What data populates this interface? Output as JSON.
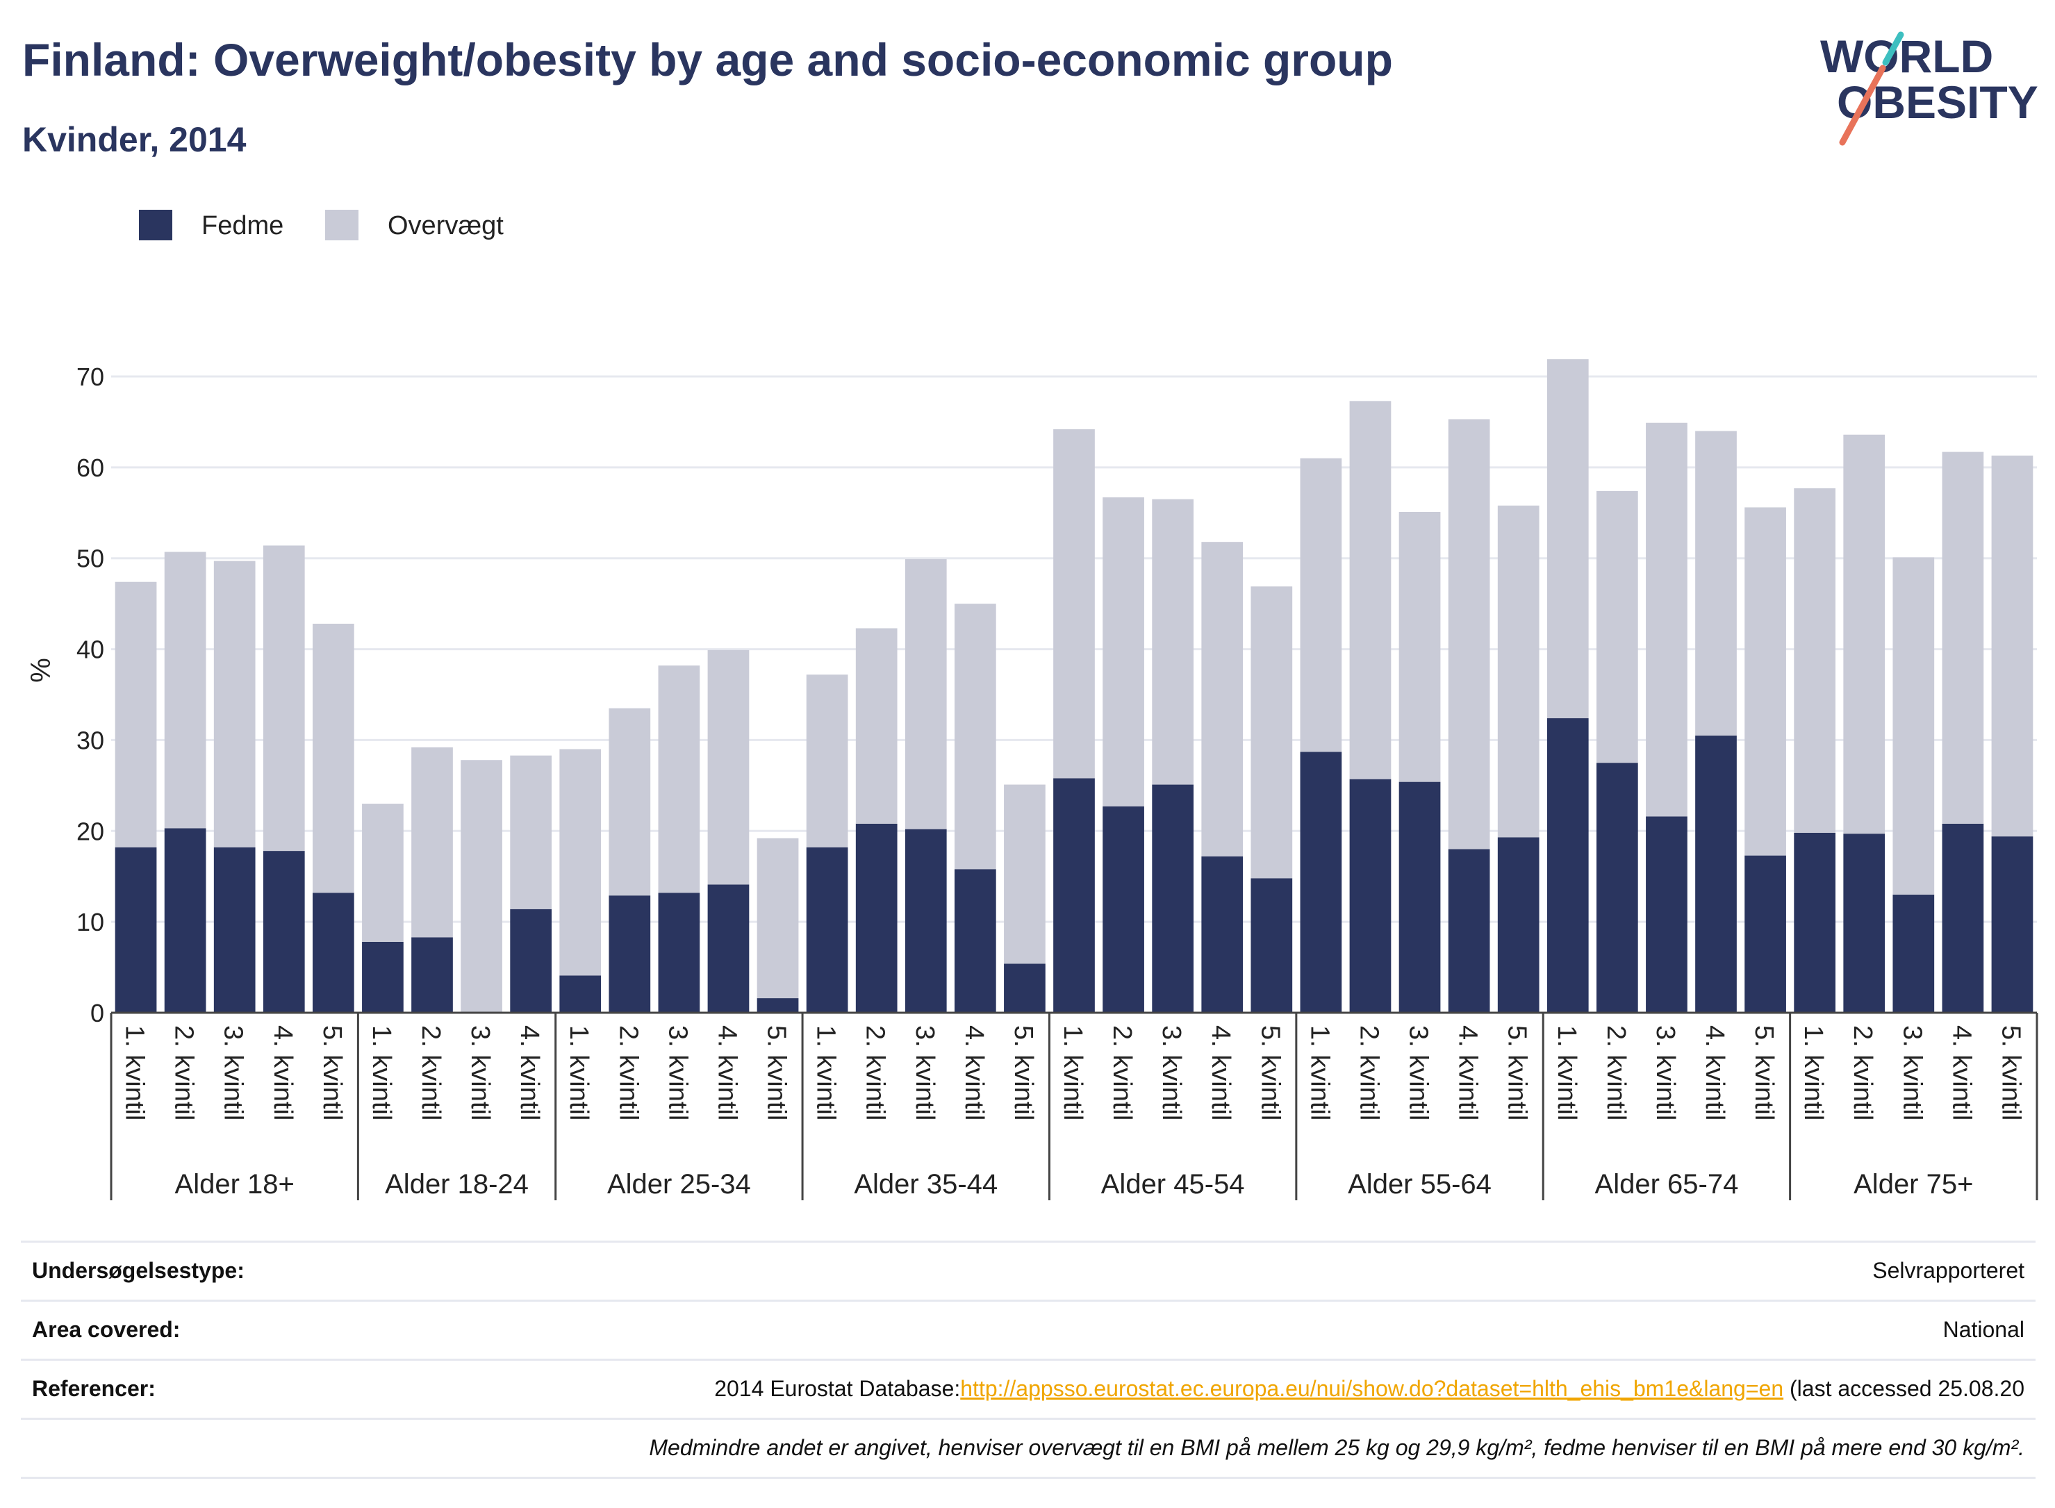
{
  "title": "Finland: Overweight/obesity by age and socio-economic group",
  "subtitle": "Kvinder, 2014",
  "logo": {
    "line1": "WORLD",
    "line2": "OBESITY",
    "accent_colors": [
      "#e8735a",
      "#3dbfc0"
    ]
  },
  "colors": {
    "fedme": "#2a355f",
    "overvaegt": "#c9cbd7",
    "grid": "#e6e8ef",
    "text": "#2a355f"
  },
  "chart_data": {
    "type": "bar",
    "stacked": true,
    "ylabel": "%",
    "ylim": [
      0,
      72
    ],
    "yticks": [
      0,
      10,
      20,
      30,
      40,
      50,
      60,
      70
    ],
    "legend_position": "top-left",
    "grid": true,
    "groups": [
      {
        "label": "Alder 18+",
        "categories": [
          "1. kvintil",
          "2. kvintil",
          "3. kvintil",
          "4. kvintil",
          "5. kvintil"
        ]
      },
      {
        "label": "Alder 18-24",
        "categories": [
          "1. kvintil",
          "2. kvintil",
          "3. kvintil",
          "4. kvintil"
        ]
      },
      {
        "label": "Alder 25-34",
        "categories": [
          "1. kvintil",
          "2. kvintil",
          "3. kvintil",
          "4. kvintil",
          "5. kvintil"
        ]
      },
      {
        "label": "Alder 35-44",
        "categories": [
          "1. kvintil",
          "2. kvintil",
          "3. kvintil",
          "4. kvintil",
          "5. kvintil"
        ]
      },
      {
        "label": "Alder 45-54",
        "categories": [
          "1. kvintil",
          "2. kvintil",
          "3. kvintil",
          "4. kvintil",
          "5. kvintil"
        ]
      },
      {
        "label": "Alder 55-64",
        "categories": [
          "1. kvintil",
          "2. kvintil",
          "3. kvintil",
          "4. kvintil",
          "5. kvintil"
        ]
      },
      {
        "label": "Alder 65-74",
        "categories": [
          "1. kvintil",
          "2. kvintil",
          "3. kvintil",
          "4. kvintil",
          "5. kvintil"
        ]
      },
      {
        "label": "Alder 75+",
        "categories": [
          "1. kvintil",
          "2. kvintil",
          "3. kvintil",
          "4. kvintil",
          "5. kvintil"
        ]
      }
    ],
    "series": [
      {
        "name": "Fedme",
        "values": [
          18.2,
          20.3,
          18.2,
          17.8,
          13.2,
          7.8,
          8.3,
          0,
          11.4,
          4.1,
          12.9,
          13.2,
          14.1,
          1.6,
          18.2,
          20.8,
          20.2,
          15.8,
          5.4,
          25.8,
          22.7,
          25.1,
          17.2,
          14.8,
          28.7,
          25.7,
          25.4,
          18.0,
          19.3,
          32.4,
          27.5,
          21.6,
          30.5,
          17.3,
          19.8,
          19.7,
          13.0,
          20.8,
          19.4
        ]
      },
      {
        "name": "Overvægt",
        "values": [
          29.2,
          30.4,
          31.5,
          33.6,
          29.6,
          15.2,
          20.9,
          27.8,
          16.9,
          24.9,
          20.6,
          25.0,
          25.8,
          17.6,
          19.0,
          21.5,
          29.7,
          29.2,
          19.7,
          38.4,
          34.0,
          31.4,
          34.6,
          32.1,
          32.3,
          41.6,
          29.7,
          47.3,
          36.5,
          39.5,
          29.9,
          43.3,
          33.5,
          38.3,
          37.9,
          43.9,
          37.1,
          40.9,
          41.9
        ]
      }
    ]
  },
  "info_table": [
    {
      "label": "Undersøgelsestype:",
      "value": "Selvrapporteret"
    },
    {
      "label": "Area covered:",
      "value": "National"
    },
    {
      "label": "Referencer:",
      "value_prefix": "2014 Eurostat Database:",
      "link": "http://appsso.eurostat.ec.europa.eu/nui/show.do?dataset=hlth_ehis_bm1e&lang=en",
      "value_suffix": " (last accessed 25.08.20"
    }
  ],
  "footnote": "Medmindre andet er angivet, henviser overvægt til en BMI på mellem 25 kg og 29,9 kg/m², fedme henviser til en BMI på mere end 30 kg/m²."
}
